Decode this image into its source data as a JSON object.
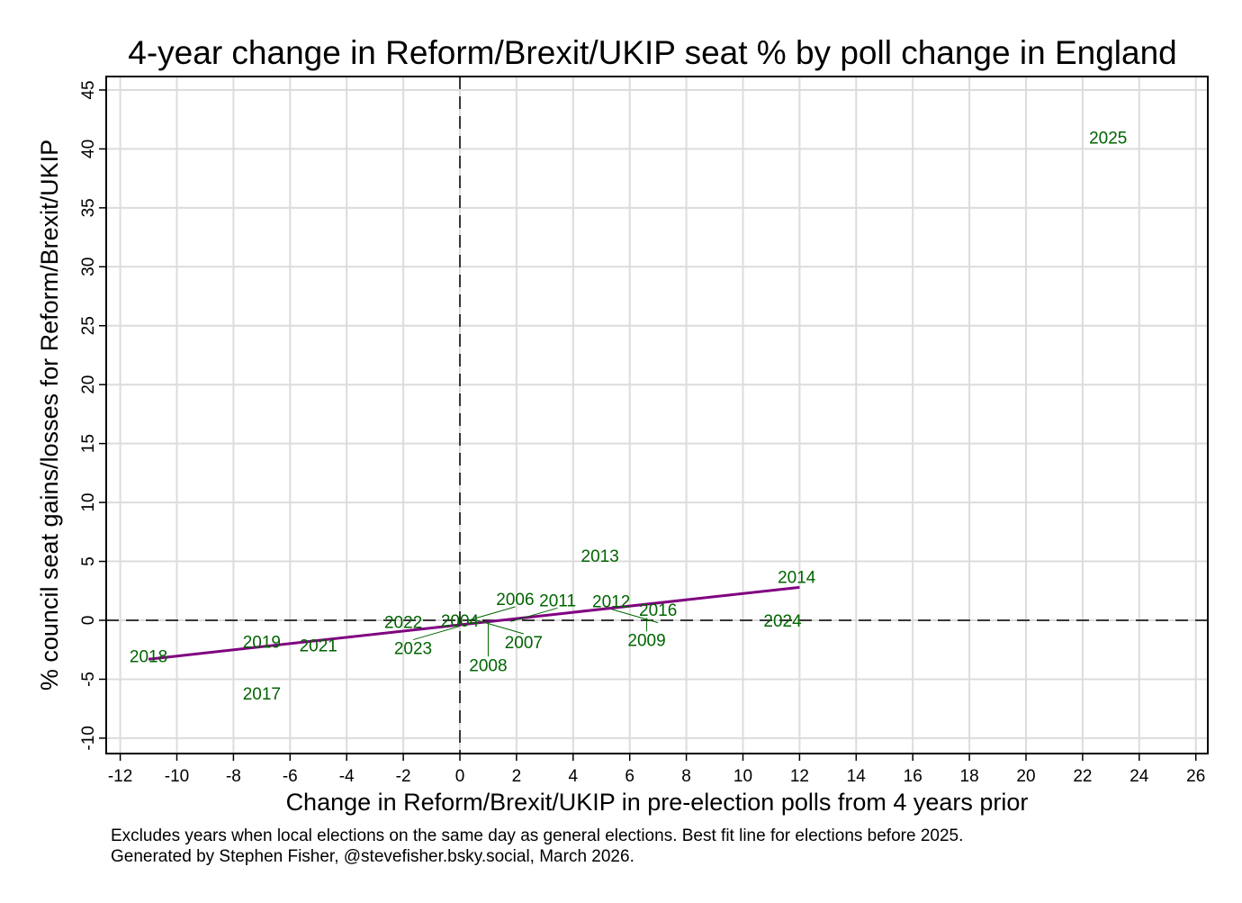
{
  "chart_data": {
    "type": "scatter",
    "title": "4-year change in Reform/Brexit/UKIP seat % by poll change in England",
    "xlabel": "Change in Reform/Brexit/UKIP in pre-election polls from 4 years prior",
    "ylabel": "% council seat gains/losses for Reform/Brexit/UKIP",
    "xlim": [
      -12,
      26
    ],
    "ylim": [
      -10,
      45
    ],
    "xticks": [
      -12,
      -10,
      -8,
      -6,
      -4,
      -2,
      0,
      2,
      4,
      6,
      8,
      10,
      12,
      14,
      16,
      18,
      20,
      22,
      24,
      26
    ],
    "yticks": [
      -10,
      -5,
      0,
      5,
      10,
      15,
      20,
      25,
      30,
      35,
      40,
      45
    ],
    "grid": true,
    "points": [
      {
        "label": "2025",
        "x": 22.9,
        "y": 41.0
      },
      {
        "label": "2013",
        "x": 4.95,
        "y": 5.5
      },
      {
        "label": "2014",
        "x": 11.9,
        "y": 3.7
      },
      {
        "label": "2024",
        "x": 11.4,
        "y": 0.0
      },
      {
        "label": "2016",
        "x": 7.0,
        "y": 0.9
      },
      {
        "label": "2009",
        "x": 6.6,
        "y": 0.2
      },
      {
        "label": "2012",
        "x": 7.0,
        "y": -0.2
      },
      {
        "label": "2022",
        "x": -2.0,
        "y": -0.1
      },
      {
        "label": "2004",
        "x": 0.0,
        "y": 0.0
      },
      {
        "label": "2006",
        "x": 0.3,
        "y": 0.0
      },
      {
        "label": "2007",
        "x": 0.6,
        "y": 0.0
      },
      {
        "label": "2008",
        "x": 1.0,
        "y": -0.1
      },
      {
        "label": "2011",
        "x": 1.8,
        "y": -0.1
      },
      {
        "label": "2023",
        "x": 0.0,
        "y": -0.5
      },
      {
        "label": "2018",
        "x": -11.0,
        "y": -3.0
      },
      {
        "label": "2019",
        "x": -7.0,
        "y": -1.8
      },
      {
        "label": "2021",
        "x": -5.0,
        "y": -2.1
      },
      {
        "label": "2017",
        "x": -7.0,
        "y": -6.2
      }
    ],
    "fit_line": {
      "x": [
        -11,
        12
      ],
      "y": [
        -3.3,
        2.8
      ],
      "color": "#800080"
    },
    "reference_lines": {
      "x": 0,
      "y": 0
    },
    "label_color": "#006400",
    "notes": [
      "Excludes years when local elections on the same day as general elections. Best fit line for elections before 2025.",
      "Generated by Stephen Fisher, @stevefisher.bsky.social, March 2026."
    ]
  }
}
